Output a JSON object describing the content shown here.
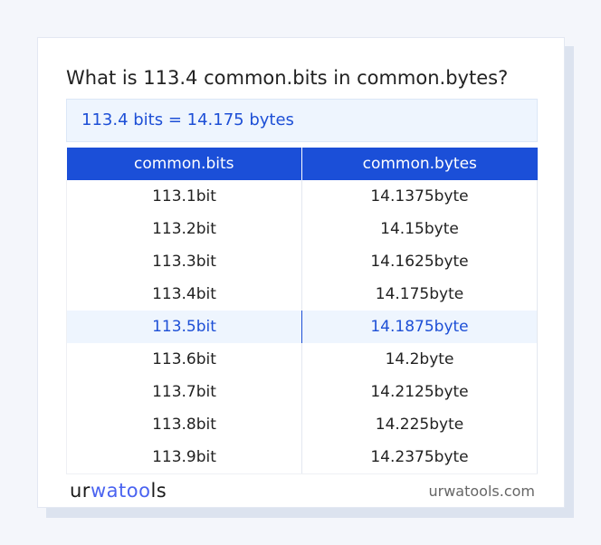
{
  "title": "What is 113.4 common.bits in common.bytes?",
  "result": "113.4 bits = 14.175 bytes",
  "table": {
    "headers": [
      "common.bits",
      "common.bytes"
    ],
    "rows": [
      [
        "113.1bit",
        "14.1375byte"
      ],
      [
        "113.2bit",
        "14.15byte"
      ],
      [
        "113.3bit",
        "14.1625byte"
      ],
      [
        "113.4bit",
        "14.175byte"
      ],
      [
        "113.5bit",
        "14.1875byte"
      ],
      [
        "113.6bit",
        "14.2byte"
      ],
      [
        "113.7bit",
        "14.2125byte"
      ],
      [
        "113.8bit",
        "14.225byte"
      ],
      [
        "113.9bit",
        "14.2375byte"
      ]
    ],
    "highlighted_row": 4
  },
  "footer": {
    "logo": "urwatools",
    "logo_parts": [
      "ur",
      "wat",
      "oo",
      "ls"
    ],
    "site": "urwatools.com"
  },
  "colors": {
    "accent": "#1b4fd8",
    "highlight_bg": "#eef5fe"
  }
}
